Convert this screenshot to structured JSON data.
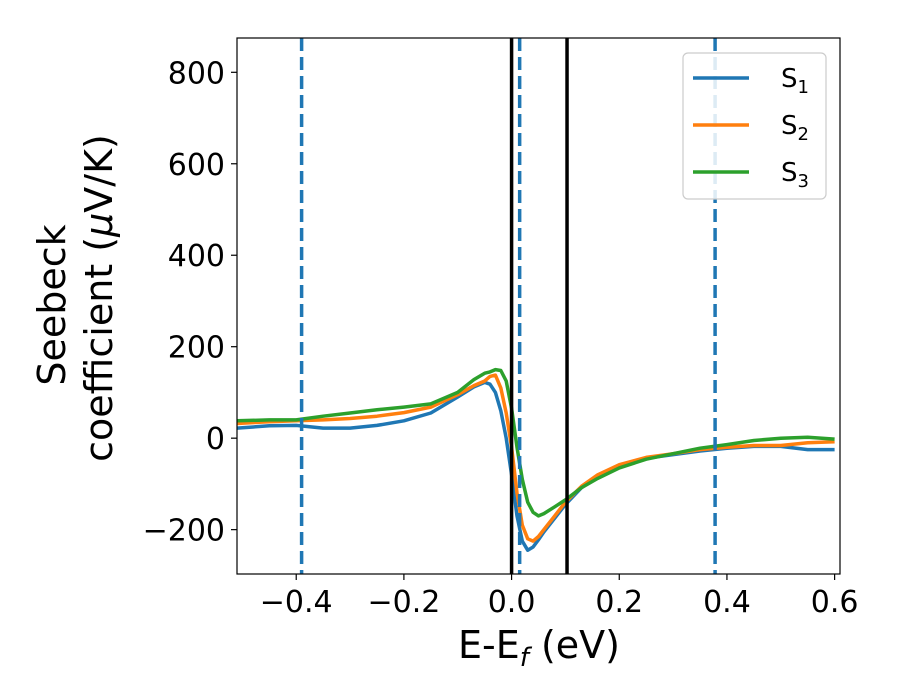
{
  "chart_data": {
    "type": "line",
    "xlabel": "E-E",
    "xlabel_sub": "f",
    "xlabel_unit": " (eV)",
    "ylabel_line1": "Seebeck",
    "ylabel_line2": "coefficient  (",
    "ylabel_mu": "μ",
    "ylabel_unit": "V/K)",
    "xlim": [
      -0.51,
      0.61
    ],
    "ylim": [
      -297,
      875
    ],
    "xticks": [
      -0.4,
      -0.2,
      0.0,
      0.2,
      0.4,
      0.6
    ],
    "xtick_labels": [
      "−0.4",
      "−0.2",
      "0.0",
      "0.2",
      "0.4",
      "0.6"
    ],
    "yticks": [
      -200,
      0,
      200,
      400,
      600,
      800
    ],
    "ytick_labels": [
      "−200",
      "0",
      "200",
      "400",
      "600",
      "800"
    ],
    "legend_position": "upper right",
    "vlines_solid": [
      0.0,
      0.103
    ],
    "vlines_dashed": [
      -0.39,
      0.015,
      0.378
    ],
    "vline_solid_color": "#000000",
    "vline_dashed_color": "#1f77b4",
    "series": [
      {
        "name": "S",
        "name_sub": "1",
        "color": "#1f77b4",
        "x": [
          -0.51,
          -0.45,
          -0.4,
          -0.35,
          -0.3,
          -0.25,
          -0.2,
          -0.15,
          -0.1,
          -0.07,
          -0.05,
          -0.04,
          -0.03,
          -0.02,
          -0.01,
          0.0,
          0.01,
          0.02,
          0.03,
          0.04,
          0.05,
          0.06,
          0.08,
          0.1,
          0.13,
          0.16,
          0.2,
          0.25,
          0.3,
          0.35,
          0.4,
          0.45,
          0.5,
          0.55,
          0.6
        ],
        "y": [
          22,
          27,
          28,
          22,
          22,
          28,
          38,
          55,
          90,
          112,
          122,
          118,
          100,
          60,
          0,
          -80,
          -170,
          -225,
          -245,
          -238,
          -222,
          -205,
          -175,
          -145,
          -108,
          -82,
          -60,
          -44,
          -36,
          -28,
          -22,
          -18,
          -18,
          -25,
          -25
        ]
      },
      {
        "name": "S",
        "name_sub": "2",
        "color": "#ff7f0e",
        "x": [
          -0.51,
          -0.45,
          -0.4,
          -0.35,
          -0.3,
          -0.25,
          -0.2,
          -0.15,
          -0.1,
          -0.07,
          -0.05,
          -0.04,
          -0.03,
          -0.02,
          -0.01,
          0.0,
          0.01,
          0.02,
          0.03,
          0.04,
          0.05,
          0.06,
          0.08,
          0.1,
          0.13,
          0.16,
          0.2,
          0.25,
          0.3,
          0.35,
          0.4,
          0.45,
          0.5,
          0.55,
          0.6
        ],
        "y": [
          32,
          36,
          38,
          40,
          43,
          48,
          56,
          68,
          95,
          115,
          125,
          135,
          138,
          110,
          55,
          -20,
          -120,
          -190,
          -220,
          -225,
          -215,
          -200,
          -170,
          -140,
          -105,
          -80,
          -58,
          -42,
          -34,
          -25,
          -20,
          -16,
          -16,
          -10,
          -8
        ]
      },
      {
        "name": "S",
        "name_sub": "3",
        "color": "#2ca02c",
        "x": [
          -0.51,
          -0.45,
          -0.4,
          -0.35,
          -0.3,
          -0.25,
          -0.2,
          -0.15,
          -0.1,
          -0.07,
          -0.05,
          -0.04,
          -0.03,
          -0.02,
          -0.01,
          0.0,
          0.01,
          0.02,
          0.03,
          0.04,
          0.05,
          0.06,
          0.08,
          0.1,
          0.13,
          0.16,
          0.2,
          0.25,
          0.3,
          0.35,
          0.4,
          0.45,
          0.5,
          0.55,
          0.6
        ],
        "y": [
          38,
          40,
          40,
          48,
          55,
          62,
          68,
          75,
          100,
          128,
          142,
          145,
          150,
          148,
          125,
          65,
          -20,
          -90,
          -140,
          -162,
          -170,
          -165,
          -150,
          -135,
          -108,
          -88,
          -65,
          -46,
          -34,
          -22,
          -14,
          -5,
          0,
          2,
          -2
        ]
      }
    ]
  }
}
